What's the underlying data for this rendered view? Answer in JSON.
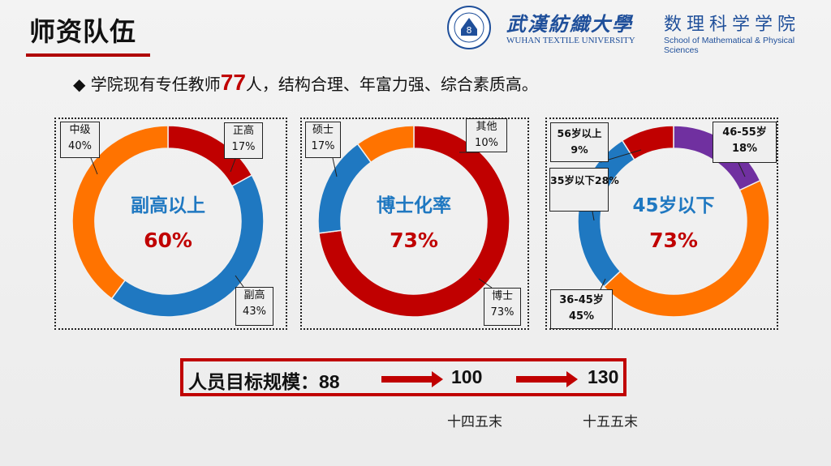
{
  "header": {
    "title": "师资队伍",
    "university_cn": "武漢紡織大學",
    "university_en": "WUHAN TEXTILE UNIVERSITY",
    "school_cn": "数理科学学院",
    "school_en": "School of Mathematical & Physical Sciences",
    "accent_color": "#c00000"
  },
  "intro": {
    "bullet": "◆",
    "prefix": "学院现有专任教师",
    "count": "77",
    "suffix": "人，结构合理、年富力强、综合素质高。"
  },
  "chart_data": [
    {
      "type": "pie",
      "variant": "donut",
      "center_title": "副高以上",
      "center_value": "60%",
      "slices": [
        {
          "label": "正高",
          "value": 17,
          "display": "17%",
          "color": "#c00000"
        },
        {
          "label": "副高",
          "value": 43,
          "display": "43%",
          "color": "#1f78c1"
        },
        {
          "label": "中级",
          "value": 40,
          "display": "40%",
          "color": "#ff7300"
        }
      ]
    },
    {
      "type": "pie",
      "variant": "donut",
      "center_title": "博士化率",
      "center_value": "73%",
      "slices": [
        {
          "label": "博士",
          "value": 73,
          "display": "73%",
          "color": "#c00000"
        },
        {
          "label": "硕士",
          "value": 17,
          "display": "17%",
          "color": "#1f78c1"
        },
        {
          "label": "其他",
          "value": 10,
          "display": "10%",
          "color": "#ff7300"
        }
      ]
    },
    {
      "type": "pie",
      "variant": "donut",
      "center_title": "45岁以下",
      "center_value": "73%",
      "slices": [
        {
          "label": "46-55岁",
          "value": 18,
          "display": "18%",
          "color": "#7030a0"
        },
        {
          "label": "36-45岁",
          "value": 45,
          "display": "45%",
          "color": "#ff7300"
        },
        {
          "label": "35岁以下",
          "value": 28,
          "display": "28%",
          "color": "#1f78c1"
        },
        {
          "label": "56岁以上",
          "value": 9,
          "display": "9%",
          "color": "#c00000"
        }
      ]
    }
  ],
  "target": {
    "label": "人员目标规模：",
    "current": "88",
    "mid": "100",
    "final": "130",
    "mid_caption": "十四五末",
    "final_caption": "十五五末"
  }
}
